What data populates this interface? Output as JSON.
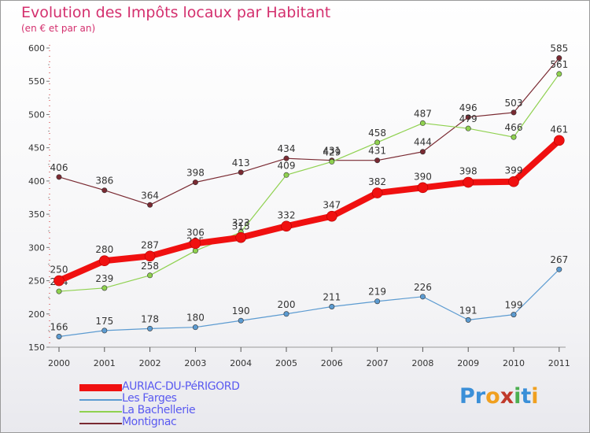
{
  "title": "Evolution des Impôts locaux par Habitant",
  "subtitle": "(en € et par an)",
  "logo": {
    "letters": [
      "P",
      "r",
      "o",
      "x",
      "i",
      "t",
      "i"
    ],
    "colors": [
      "#3a8fd8",
      "#3a8fd8",
      "#f0a020",
      "#c0392b",
      "#4caf50",
      "#3a8fd8",
      "#f0a020"
    ]
  },
  "chart_data": {
    "type": "line",
    "title": "Evolution des Impôts locaux par Habitant",
    "subtitle": "(en € et par an)",
    "xlabel": "",
    "ylabel": "",
    "categories": [
      "2000",
      "2001",
      "2002",
      "2003",
      "2004",
      "2005",
      "2006",
      "2007",
      "2008",
      "2009",
      "2010",
      "2011"
    ],
    "ylim": [
      150,
      600
    ],
    "yticks": [
      "150",
      "200",
      "250",
      "300",
      "350",
      "400",
      "450",
      "500",
      "550",
      "600"
    ],
    "grid": false,
    "legend_position": "bottom-left",
    "series": [
      {
        "name": "Montignac",
        "color": "#7a2a32",
        "width": 1.2,
        "values": [
          406,
          386,
          364,
          398,
          413,
          434,
          431,
          431,
          444,
          496,
          503,
          585
        ],
        "labels": [
          "406",
          "386",
          "364",
          "398",
          "413",
          "434",
          "431",
          "431",
          "444",
          "496",
          "503",
          "585"
        ]
      },
      {
        "name": "La Bachellerie",
        "color": "#8fd14f",
        "width": 1.2,
        "values": [
          234,
          239,
          258,
          295,
          323,
          409,
          429,
          458,
          487,
          479,
          466,
          561
        ],
        "labels": [
          "234",
          "239",
          "258",
          "295",
          "323",
          "409",
          "429",
          "458",
          "487",
          "479",
          "466",
          "561"
        ]
      },
      {
        "name": "Les Farges",
        "color": "#5c9bd1",
        "width": 1.2,
        "values": [
          166,
          175,
          178,
          180,
          190,
          200,
          211,
          219,
          226,
          191,
          199,
          267
        ],
        "labels": [
          "166",
          "175",
          "178",
          "180",
          "190",
          "200",
          "211",
          "219",
          "226",
          "191",
          "199",
          "267"
        ]
      },
      {
        "name": "AURIAC-DU-PéRIGORD",
        "color": "#f01010",
        "width": 8,
        "values": [
          250,
          280,
          287,
          306,
          315,
          332,
          347,
          382,
          390,
          398,
          399,
          461
        ],
        "labels": [
          "250",
          "280",
          "287",
          "306",
          "315",
          "332",
          "347",
          "382",
          "390",
          "398",
          "399",
          "461"
        ]
      }
    ],
    "legend_order": [
      "AURIAC-DU-PéRIGORD",
      "Les Farges",
      "La Bachellerie",
      "Montignac"
    ]
  }
}
